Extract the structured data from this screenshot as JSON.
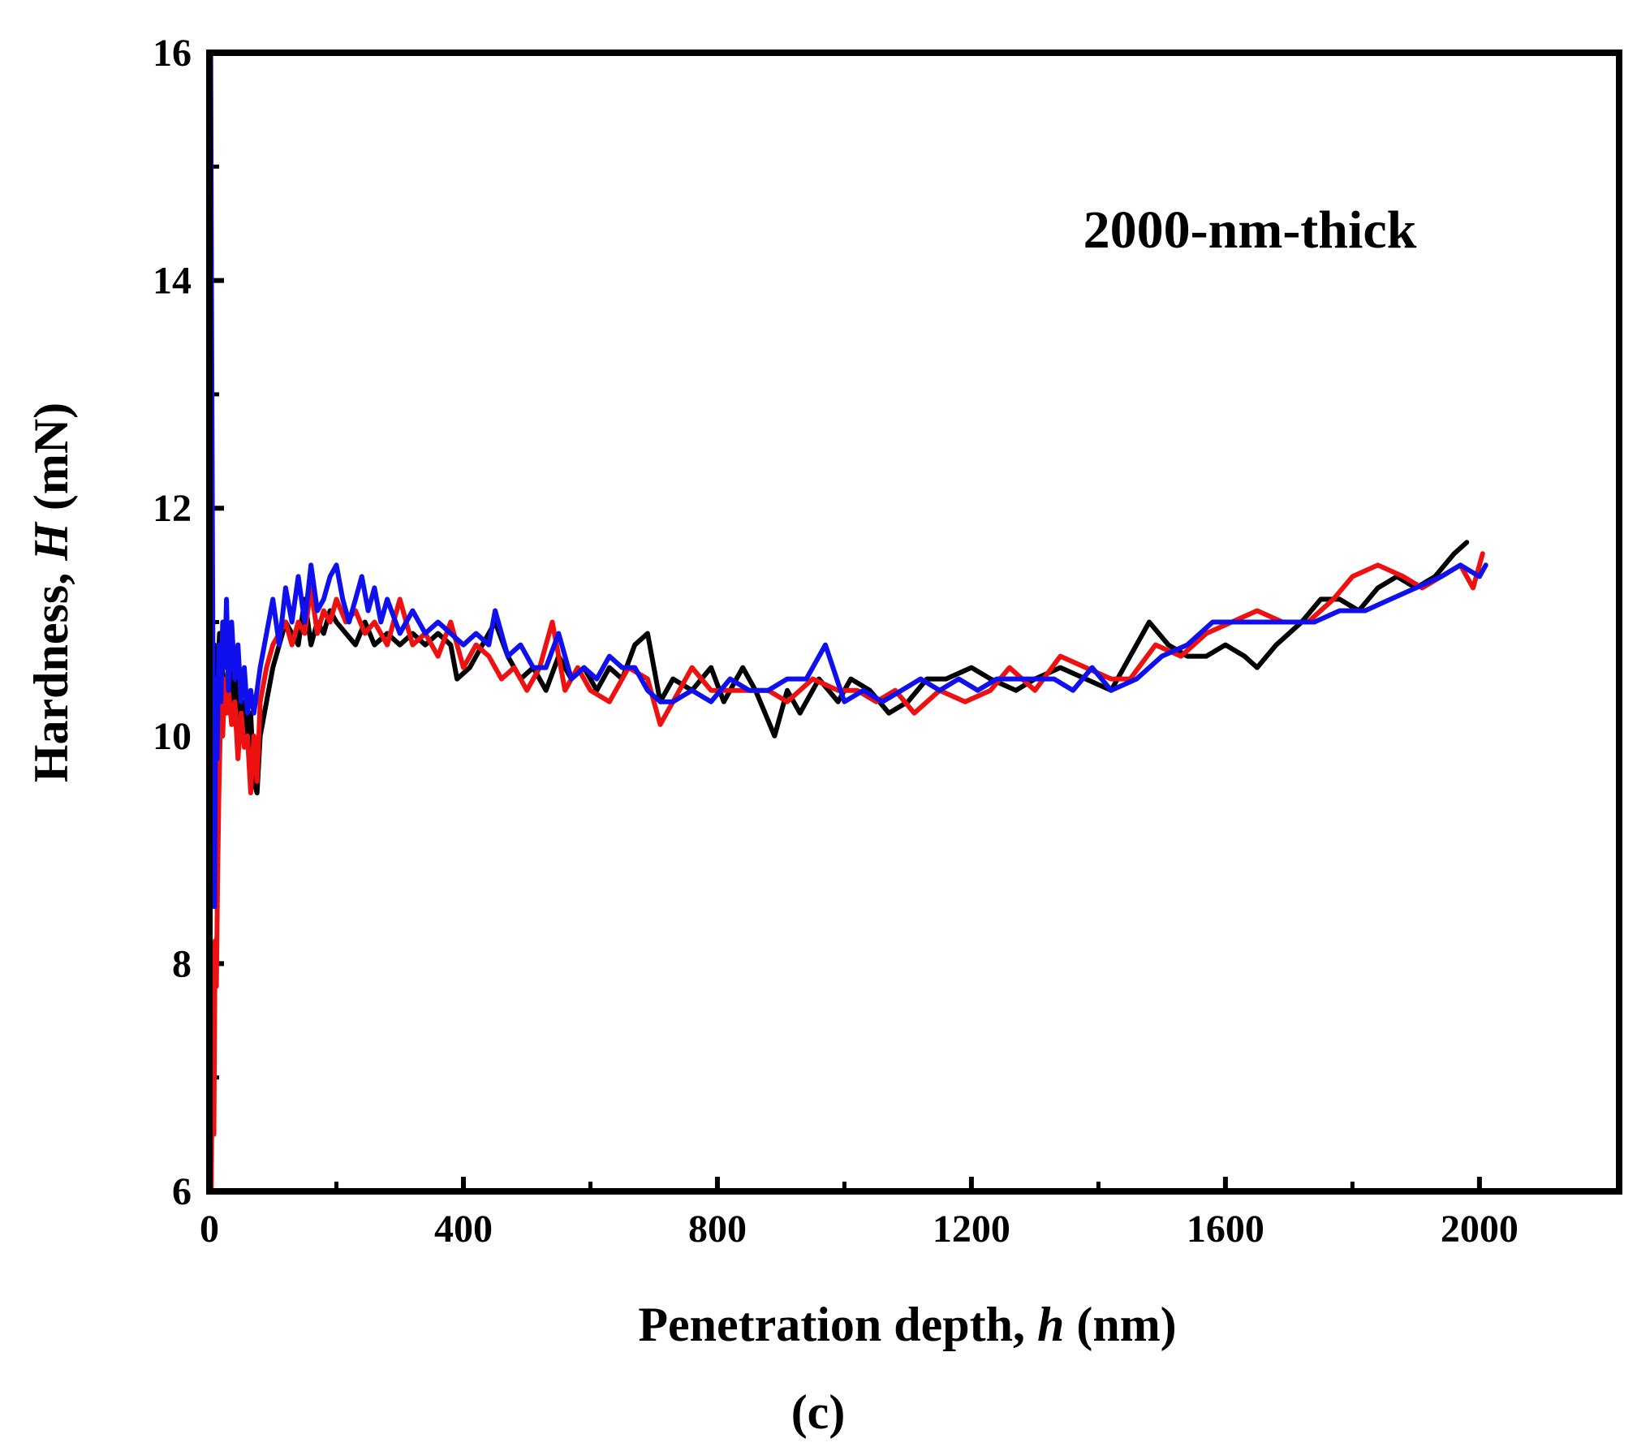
{
  "chart_data": {
    "type": "line",
    "title": "",
    "annotation": "2000-nm-thick",
    "panel_label": "(c)",
    "xlabel": {
      "text": "Penetration depth, ",
      "italic": "h",
      "unit": " (nm)"
    },
    "ylabel": {
      "text": "Hardness, ",
      "italic": "H",
      "unit": " (mN)"
    },
    "xlim": [
      0,
      2220
    ],
    "ylim": [
      6,
      16
    ],
    "xticks": [
      0,
      400,
      800,
      1200,
      1600,
      2000
    ],
    "xminor": [
      200,
      600,
      1000,
      1400,
      1800
    ],
    "yticks": [
      6,
      8,
      10,
      12,
      14,
      16
    ],
    "yminor": [
      7,
      9,
      11,
      13,
      15
    ],
    "grid": false,
    "series": [
      {
        "name": "black",
        "color": "#000000",
        "x": [
          5,
          8,
          12,
          16,
          20,
          25,
          30,
          35,
          40,
          45,
          50,
          55,
          60,
          65,
          70,
          75,
          80,
          90,
          100,
          110,
          120,
          130,
          140,
          150,
          160,
          170,
          180,
          190,
          200,
          215,
          230,
          245,
          260,
          280,
          300,
          320,
          340,
          360,
          380,
          390,
          410,
          430,
          450,
          470,
          490,
          510,
          530,
          550,
          570,
          590,
          610,
          630,
          650,
          670,
          690,
          710,
          730,
          760,
          790,
          810,
          840,
          860,
          890,
          910,
          930,
          960,
          990,
          1010,
          1040,
          1070,
          1100,
          1130,
          1160,
          1200,
          1230,
          1270,
          1300,
          1340,
          1380,
          1420,
          1450,
          1480,
          1510,
          1540,
          1570,
          1600,
          1630,
          1650,
          1680,
          1720,
          1750,
          1780,
          1810,
          1840,
          1870,
          1900,
          1930,
          1960,
          1980
        ],
        "y": [
          10.2,
          10.8,
          10.4,
          10.9,
          10.6,
          10.4,
          10.3,
          10.6,
          10.2,
          10.5,
          10.1,
          10.3,
          10.0,
          10.2,
          9.6,
          9.5,
          10.0,
          10.3,
          10.6,
          10.8,
          11.0,
          10.9,
          10.8,
          11.2,
          10.8,
          11.0,
          10.9,
          11.1,
          11.0,
          10.9,
          10.8,
          11.0,
          10.8,
          10.9,
          10.8,
          10.9,
          10.8,
          10.9,
          10.8,
          10.5,
          10.6,
          10.8,
          11.0,
          10.7,
          10.5,
          10.6,
          10.4,
          10.7,
          10.5,
          10.6,
          10.4,
          10.6,
          10.5,
          10.8,
          10.9,
          10.3,
          10.5,
          10.4,
          10.6,
          10.3,
          10.6,
          10.4,
          10.0,
          10.4,
          10.2,
          10.5,
          10.3,
          10.5,
          10.4,
          10.2,
          10.3,
          10.5,
          10.5,
          10.6,
          10.5,
          10.4,
          10.5,
          10.6,
          10.5,
          10.4,
          10.7,
          11.0,
          10.8,
          10.7,
          10.7,
          10.8,
          10.7,
          10.6,
          10.8,
          11.0,
          11.2,
          11.2,
          11.1,
          11.3,
          11.4,
          11.3,
          11.4,
          11.6,
          11.7
        ]
      },
      {
        "name": "red",
        "color": "#ee1111",
        "x": [
          3,
          5,
          7,
          9,
          11,
          13,
          15,
          18,
          21,
          24,
          27,
          30,
          35,
          40,
          45,
          50,
          55,
          60,
          65,
          70,
          75,
          80,
          90,
          100,
          110,
          120,
          130,
          140,
          150,
          160,
          170,
          180,
          190,
          200,
          215,
          230,
          245,
          260,
          280,
          300,
          320,
          340,
          360,
          380,
          400,
          420,
          440,
          460,
          480,
          500,
          520,
          540,
          560,
          580,
          600,
          630,
          660,
          690,
          710,
          730,
          760,
          790,
          820,
          850,
          880,
          910,
          950,
          990,
          1020,
          1050,
          1080,
          1110,
          1150,
          1190,
          1230,
          1260,
          1300,
          1340,
          1380,
          1420,
          1450,
          1490,
          1530,
          1570,
          1610,
          1650,
          1690,
          1730,
          1770,
          1800,
          1840,
          1880,
          1910,
          1940,
          1970,
          1990,
          2005
        ],
        "y": [
          6.0,
          7.5,
          6.5,
          8.2,
          7.8,
          8.8,
          9.5,
          10.3,
          10.0,
          10.5,
          10.2,
          10.4,
          10.1,
          10.3,
          9.8,
          10.2,
          9.9,
          10.0,
          9.5,
          10.0,
          9.6,
          10.3,
          10.6,
          10.8,
          10.9,
          11.0,
          10.8,
          11.0,
          10.9,
          11.3,
          10.9,
          11.1,
          11.0,
          11.2,
          11.0,
          11.1,
          10.9,
          11.0,
          10.8,
          11.2,
          10.8,
          10.9,
          10.7,
          11.0,
          10.6,
          10.8,
          10.7,
          10.5,
          10.6,
          10.4,
          10.6,
          11.0,
          10.4,
          10.6,
          10.4,
          10.3,
          10.6,
          10.5,
          10.1,
          10.3,
          10.6,
          10.4,
          10.4,
          10.4,
          10.4,
          10.3,
          10.5,
          10.4,
          10.4,
          10.3,
          10.4,
          10.2,
          10.4,
          10.3,
          10.4,
          10.6,
          10.4,
          10.7,
          10.6,
          10.5,
          10.5,
          10.8,
          10.7,
          10.9,
          11.0,
          11.1,
          11.0,
          11.0,
          11.2,
          11.4,
          11.5,
          11.4,
          11.3,
          11.4,
          11.5,
          11.3,
          11.6
        ]
      },
      {
        "name": "blue",
        "color": "#1010ee",
        "x": [
          2,
          3,
          4,
          5,
          6,
          7,
          8,
          10,
          12,
          15,
          18,
          21,
          24,
          27,
          30,
          35,
          40,
          45,
          50,
          55,
          60,
          65,
          70,
          75,
          80,
          90,
          100,
          110,
          120,
          130,
          140,
          150,
          160,
          170,
          180,
          190,
          200,
          210,
          220,
          230,
          240,
          250,
          260,
          270,
          280,
          300,
          320,
          340,
          360,
          380,
          400,
          420,
          440,
          450,
          470,
          490,
          510,
          530,
          550,
          570,
          590,
          610,
          630,
          650,
          670,
          690,
          710,
          730,
          760,
          790,
          820,
          850,
          880,
          910,
          940,
          970,
          1000,
          1030,
          1060,
          1090,
          1120,
          1150,
          1180,
          1210,
          1240,
          1270,
          1300,
          1330,
          1360,
          1390,
          1420,
          1460,
          1500,
          1540,
          1580,
          1620,
          1660,
          1700,
          1740,
          1780,
          1820,
          1860,
          1900,
          1940,
          1970,
          2000,
          2010
        ],
        "y": [
          16.0,
          14.5,
          13.0,
          11.5,
          10.0,
          9.2,
          8.5,
          10.5,
          9.8,
          10.8,
          10.3,
          11.0,
          10.6,
          11.2,
          10.4,
          11.0,
          10.5,
          10.8,
          10.3,
          10.6,
          10.2,
          10.4,
          10.2,
          10.4,
          10.6,
          10.9,
          11.2,
          10.8,
          11.3,
          11.0,
          11.4,
          11.0,
          11.5,
          11.1,
          11.2,
          11.4,
          11.5,
          11.2,
          11.0,
          11.2,
          11.4,
          11.1,
          11.3,
          11.0,
          11.2,
          10.9,
          11.1,
          10.9,
          11.0,
          10.9,
          10.8,
          10.9,
          10.8,
          11.1,
          10.7,
          10.8,
          10.6,
          10.6,
          10.9,
          10.5,
          10.6,
          10.5,
          10.7,
          10.6,
          10.6,
          10.4,
          10.3,
          10.3,
          10.4,
          10.3,
          10.5,
          10.4,
          10.4,
          10.5,
          10.5,
          10.8,
          10.3,
          10.4,
          10.3,
          10.4,
          10.5,
          10.4,
          10.5,
          10.4,
          10.5,
          10.5,
          10.5,
          10.5,
          10.4,
          10.6,
          10.4,
          10.5,
          10.7,
          10.8,
          11.0,
          11.0,
          11.0,
          11.0,
          11.0,
          11.1,
          11.1,
          11.2,
          11.3,
          11.4,
          11.5,
          11.4,
          11.5
        ]
      }
    ]
  }
}
